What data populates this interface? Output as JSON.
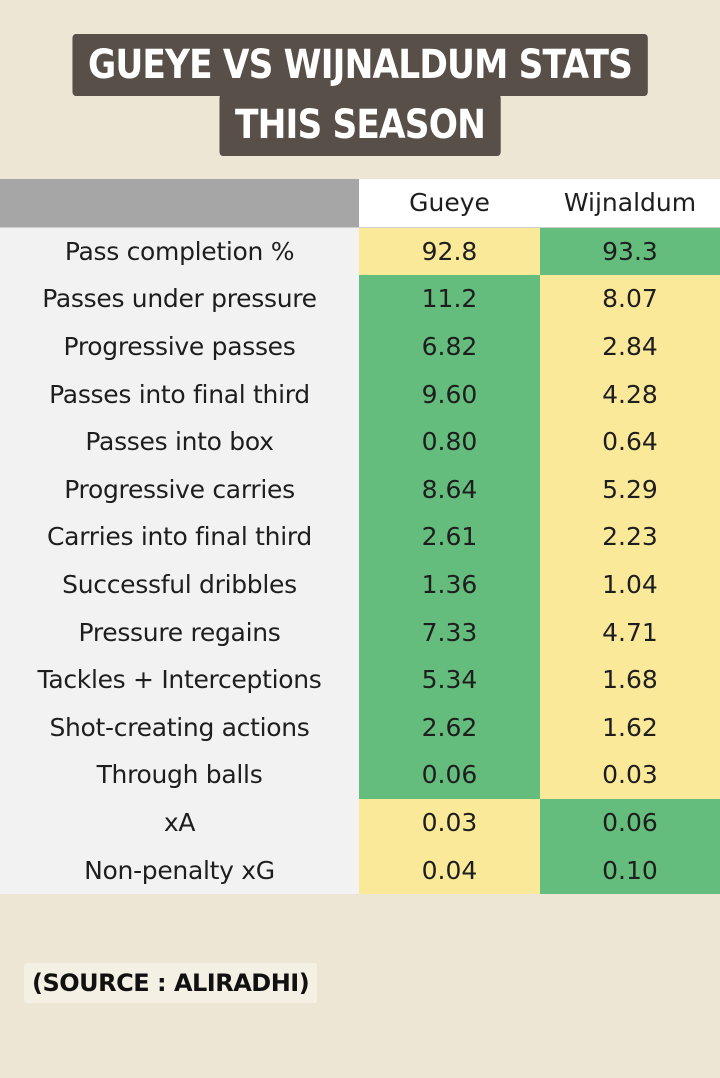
{
  "title": {
    "line1": "GUEYE VS WIJNALDUM STATS",
    "line2": "THIS SEASON"
  },
  "table": {
    "header": [
      "",
      "Gueye",
      "Wijnaldum"
    ],
    "rows": [
      {
        "metric": "Pass completion %",
        "gueye": "92.8",
        "wijnaldum": "93.3",
        "leader": "wijnaldum"
      },
      {
        "metric": "Passes under pressure",
        "gueye": "11.2",
        "wijnaldum": "8.07",
        "leader": "gueye"
      },
      {
        "metric": "Progressive passes",
        "gueye": "6.82",
        "wijnaldum": "2.84",
        "leader": "gueye"
      },
      {
        "metric": "Passes into final third",
        "gueye": "9.60",
        "wijnaldum": "4.28",
        "leader": "gueye"
      },
      {
        "metric": "Passes into box",
        "gueye": "0.80",
        "wijnaldum": "0.64",
        "leader": "gueye"
      },
      {
        "metric": "Progressive carries",
        "gueye": "8.64",
        "wijnaldum": "5.29",
        "leader": "gueye"
      },
      {
        "metric": "Carries into final third",
        "gueye": "2.61",
        "wijnaldum": "2.23",
        "leader": "gueye"
      },
      {
        "metric": "Successful dribbles",
        "gueye": "1.36",
        "wijnaldum": "1.04",
        "leader": "gueye"
      },
      {
        "metric": "Pressure regains",
        "gueye": "7.33",
        "wijnaldum": "4.71",
        "leader": "gueye"
      },
      {
        "metric": "Tackles + Interceptions",
        "gueye": "5.34",
        "wijnaldum": "1.68",
        "leader": "gueye"
      },
      {
        "metric": "Shot-creating actions",
        "gueye": "2.62",
        "wijnaldum": "1.62",
        "leader": "gueye"
      },
      {
        "metric": "Through balls",
        "gueye": "0.06",
        "wijnaldum": "0.03",
        "leader": "gueye"
      },
      {
        "metric": "xA",
        "gueye": "0.03",
        "wijnaldum": "0.06",
        "leader": "wijnaldum"
      },
      {
        "metric": "Non-penalty xG",
        "gueye": "0.04",
        "wijnaldum": "0.10",
        "leader": "wijnaldum"
      }
    ]
  },
  "source": "(SOURCE : ALIRADHI)",
  "colors": {
    "background": "#ede6d5",
    "title_box": "#585048",
    "leader_cell": "#64bd7d",
    "other_cell": "#fbe99a",
    "metric_cell": "#f2f2f2",
    "header_corner": "#a6a6a6"
  }
}
